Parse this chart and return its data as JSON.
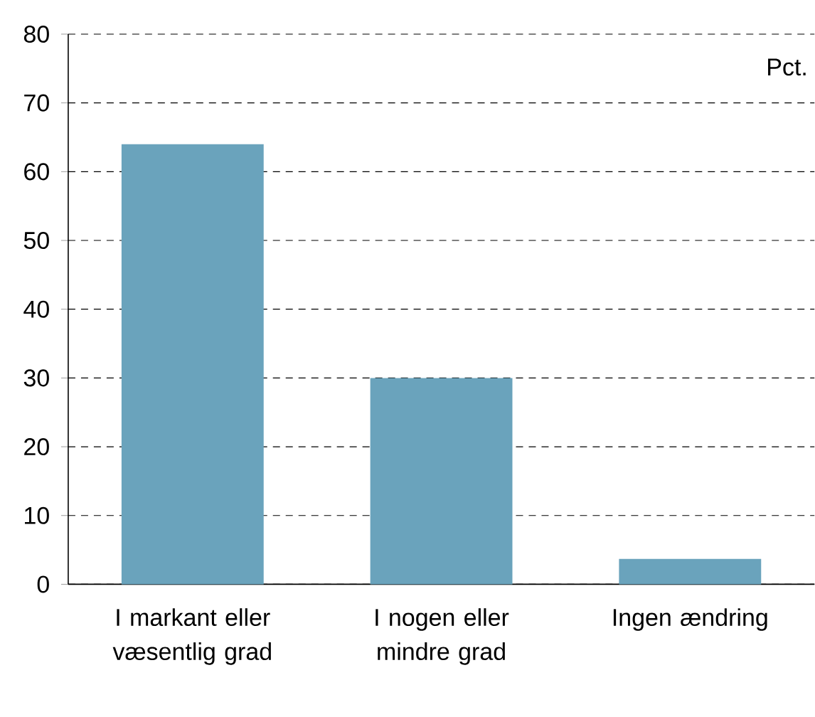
{
  "chart_data": {
    "type": "bar",
    "ylabel": "Pct.",
    "categories": [
      "I markant eller væsentlig grad",
      "I nogen eller mindre grad",
      "Ingen ændring"
    ],
    "values": [
      64,
      30,
      3.7
    ],
    "color": "#6aa3bc",
    "ylim": [
      0,
      80
    ],
    "yticks": [
      0,
      10,
      20,
      30,
      40,
      50,
      60,
      70,
      80
    ],
    "grid": "y"
  }
}
